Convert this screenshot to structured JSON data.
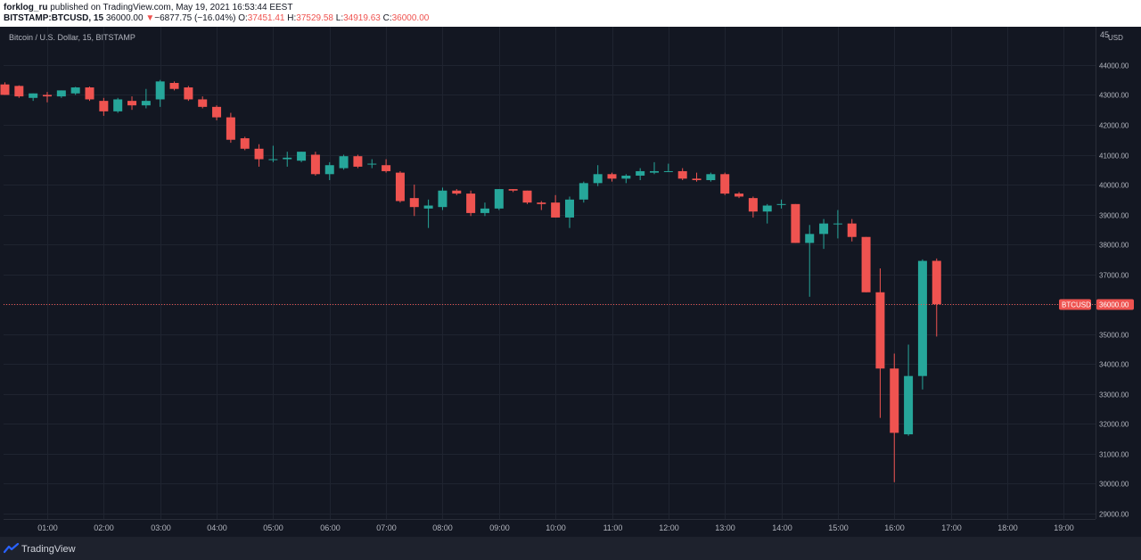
{
  "header": {
    "publisher": "forklog_ru",
    "published_text": " published on TradingView.com, May 19, 2021 16:53:44 EEST",
    "symbol": "BITSTAMP:BTCUSD, 15",
    "last": "36000.00",
    "change_arrow": "▼",
    "change": "−6877.75 (−16.04%)",
    "open_label": "O:",
    "open": "37451.41",
    "high_label": "H:",
    "high": "37529.58",
    "low_label": "L:",
    "low": "34919.63",
    "close_label": "C:",
    "close": "36000.00"
  },
  "footer": {
    "brand": "TradingView",
    "logo_icon": "tradingview-logo-icon"
  },
  "chart_data": {
    "type": "candlestick",
    "title": "Bitcoin / U.S. Dollar, 15, BITSTAMP",
    "currency_label": "USD",
    "price_label": "BTCUSD",
    "price_value": 36000,
    "price_value_text": "36000.00",
    "y_range": [
      28700,
      45100
    ],
    "y_ticks": [
      29000,
      30000,
      31000,
      32000,
      33000,
      34000,
      35000,
      36000,
      37000,
      38000,
      39000,
      40000,
      41000,
      42000,
      43000,
      44000
    ],
    "y_tick_labels": [
      "29000.00",
      "30000.00",
      "31000.00",
      "32000.00",
      "33000.00",
      "34000.00",
      "35000.00",
      "36000.00",
      "37000.00",
      "38000.00",
      "39000.00",
      "40000.00",
      "41000.00",
      "42000.00",
      "43000.00",
      "44000.00"
    ],
    "y_top_label": "45",
    "x_tick_labels": [
      "01:00",
      "02:00",
      "03:00",
      "04:00",
      "05:00",
      "06:00",
      "07:00",
      "08:00",
      "09:00",
      "10:00",
      "11:00",
      "12:00",
      "13:00",
      "14:00",
      "15:00",
      "16:00",
      "17:00",
      "18:00",
      "19:00"
    ],
    "first_candle_time": "00:15",
    "interval_minutes": 15,
    "colors": {
      "up": "#26a69a",
      "down": "#ef5350",
      "background": "#131722",
      "grid": "#1f2430",
      "text": "#b2b5be"
    },
    "candles": [
      {
        "o": 43350,
        "h": 43420,
        "l": 43000,
        "c": 43000
      },
      {
        "o": 43300,
        "h": 43320,
        "l": 42900,
        "c": 42950
      },
      {
        "o": 42900,
        "h": 43050,
        "l": 42800,
        "c": 43050
      },
      {
        "o": 43000,
        "h": 43100,
        "l": 42750,
        "c": 42950
      },
      {
        "o": 42950,
        "h": 43150,
        "l": 42900,
        "c": 43150
      },
      {
        "o": 43050,
        "h": 43270,
        "l": 43000,
        "c": 43250
      },
      {
        "o": 43250,
        "h": 43280,
        "l": 42800,
        "c": 42850
      },
      {
        "o": 42800,
        "h": 42900,
        "l": 42300,
        "c": 42450
      },
      {
        "o": 42450,
        "h": 42900,
        "l": 42400,
        "c": 42850
      },
      {
        "o": 42800,
        "h": 42950,
        "l": 42500,
        "c": 42650
      },
      {
        "o": 42650,
        "h": 43200,
        "l": 42550,
        "c": 42800
      },
      {
        "o": 42850,
        "h": 43500,
        "l": 42600,
        "c": 43450
      },
      {
        "o": 43400,
        "h": 43450,
        "l": 43150,
        "c": 43200
      },
      {
        "o": 43250,
        "h": 43300,
        "l": 42800,
        "c": 42850
      },
      {
        "o": 42850,
        "h": 42950,
        "l": 42550,
        "c": 42600
      },
      {
        "o": 42600,
        "h": 42650,
        "l": 42150,
        "c": 42250
      },
      {
        "o": 42250,
        "h": 42400,
        "l": 41400,
        "c": 41500
      },
      {
        "o": 41550,
        "h": 41600,
        "l": 41150,
        "c": 41200
      },
      {
        "o": 41200,
        "h": 41350,
        "l": 40600,
        "c": 40850
      },
      {
        "o": 40850,
        "h": 41300,
        "l": 40750,
        "c": 40850
      },
      {
        "o": 40850,
        "h": 41100,
        "l": 40600,
        "c": 40900
      },
      {
        "o": 40800,
        "h": 41100,
        "l": 40750,
        "c": 41100
      },
      {
        "o": 41000,
        "h": 41100,
        "l": 40300,
        "c": 40350
      },
      {
        "o": 40350,
        "h": 40750,
        "l": 40150,
        "c": 40650
      },
      {
        "o": 40550,
        "h": 41000,
        "l": 40500,
        "c": 40950
      },
      {
        "o": 40950,
        "h": 41000,
        "l": 40550,
        "c": 40600
      },
      {
        "o": 40700,
        "h": 40850,
        "l": 40550,
        "c": 40700
      },
      {
        "o": 40650,
        "h": 40850,
        "l": 40400,
        "c": 40450
      },
      {
        "o": 40400,
        "h": 40450,
        "l": 39400,
        "c": 39450
      },
      {
        "o": 39550,
        "h": 40000,
        "l": 38950,
        "c": 39250
      },
      {
        "o": 39200,
        "h": 39500,
        "l": 38550,
        "c": 39300
      },
      {
        "o": 39250,
        "h": 39900,
        "l": 39150,
        "c": 39800
      },
      {
        "o": 39800,
        "h": 39850,
        "l": 39650,
        "c": 39700
      },
      {
        "o": 39700,
        "h": 39800,
        "l": 38950,
        "c": 39050
      },
      {
        "o": 39050,
        "h": 39400,
        "l": 38950,
        "c": 39200
      },
      {
        "o": 39200,
        "h": 39850,
        "l": 39150,
        "c": 39850
      },
      {
        "o": 39850,
        "h": 39850,
        "l": 39750,
        "c": 39800
      },
      {
        "o": 39800,
        "h": 39800,
        "l": 39350,
        "c": 39400
      },
      {
        "o": 39400,
        "h": 39450,
        "l": 39150,
        "c": 39350
      },
      {
        "o": 39400,
        "h": 39650,
        "l": 38900,
        "c": 38900
      },
      {
        "o": 38900,
        "h": 39600,
        "l": 38550,
        "c": 39500
      },
      {
        "o": 39500,
        "h": 40100,
        "l": 39400,
        "c": 40050
      },
      {
        "o": 40050,
        "h": 40650,
        "l": 39950,
        "c": 40350
      },
      {
        "o": 40350,
        "h": 40400,
        "l": 40100,
        "c": 40200
      },
      {
        "o": 40200,
        "h": 40350,
        "l": 40050,
        "c": 40300
      },
      {
        "o": 40300,
        "h": 40550,
        "l": 40150,
        "c": 40450
      },
      {
        "o": 40400,
        "h": 40750,
        "l": 40350,
        "c": 40450
      },
      {
        "o": 40450,
        "h": 40700,
        "l": 40450,
        "c": 40450
      },
      {
        "o": 40450,
        "h": 40550,
        "l": 40150,
        "c": 40200
      },
      {
        "o": 40200,
        "h": 40400,
        "l": 40100,
        "c": 40150
      },
      {
        "o": 40150,
        "h": 40400,
        "l": 40100,
        "c": 40350
      },
      {
        "o": 40350,
        "h": 40400,
        "l": 39650,
        "c": 39700
      },
      {
        "o": 39700,
        "h": 39750,
        "l": 39550,
        "c": 39600
      },
      {
        "o": 39550,
        "h": 39600,
        "l": 38900,
        "c": 39100
      },
      {
        "o": 39100,
        "h": 39350,
        "l": 38700,
        "c": 39300
      },
      {
        "o": 39350,
        "h": 39500,
        "l": 39200,
        "c": 39350
      },
      {
        "o": 39350,
        "h": 39350,
        "l": 38050,
        "c": 38050
      },
      {
        "o": 38050,
        "h": 38650,
        "l": 36250,
        "c": 38350
      },
      {
        "o": 38350,
        "h": 38850,
        "l": 37850,
        "c": 38700
      },
      {
        "o": 38700,
        "h": 39150,
        "l": 38200,
        "c": 38700
      },
      {
        "o": 38700,
        "h": 38850,
        "l": 38100,
        "c": 38250
      },
      {
        "o": 38250,
        "h": 38250,
        "l": 36400,
        "c": 36400
      },
      {
        "o": 36400,
        "h": 37200,
        "l": 32200,
        "c": 33850
      },
      {
        "o": 33850,
        "h": 34350,
        "l": 30050,
        "c": 31700
      },
      {
        "o": 31650,
        "h": 34650,
        "l": 31600,
        "c": 33600
      },
      {
        "o": 33600,
        "h": 37500,
        "l": 33150,
        "c": 37450
      },
      {
        "o": 37451.41,
        "h": 37529.58,
        "l": 34919.63,
        "c": 36000
      }
    ]
  }
}
